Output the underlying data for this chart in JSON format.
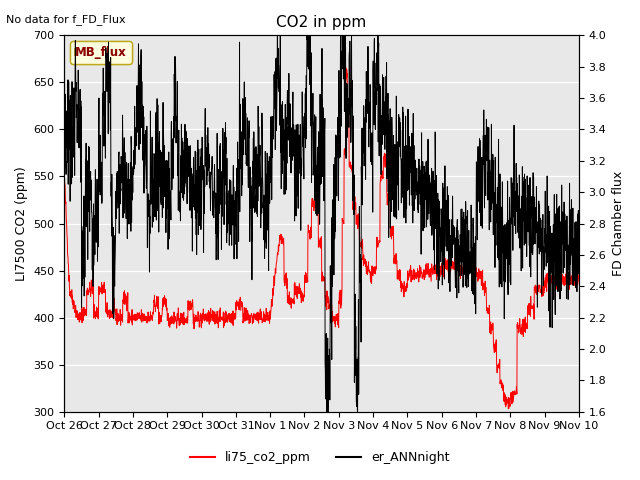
{
  "title": "CO2 in ppm",
  "left_ylabel": "LI7500 CO2 (ppm)",
  "right_ylabel": "FD Chamber flux",
  "no_data_text": "No data for f_FD_Flux",
  "mb_flux_label": "MB_flux",
  "legend_labels": [
    "li75_co2_ppm",
    "er_ANNnight"
  ],
  "line1_color": "red",
  "line2_color": "black",
  "ylim_left": [
    300,
    700
  ],
  "ylim_right": [
    1.6,
    4.0
  ],
  "xtick_labels": [
    "Oct 26",
    "Oct 27",
    "Oct 28",
    "Oct 29",
    "Oct 30",
    "Oct 31",
    "Nov 1",
    "Nov 2",
    "Nov 3",
    "Nov 4",
    "Nov 5",
    "Nov 6",
    "Nov 7",
    "Nov 8",
    "Nov 9",
    "Nov 10"
  ],
  "background_color": "#e8e8e8",
  "title_fontsize": 11,
  "label_fontsize": 9,
  "tick_fontsize": 8
}
